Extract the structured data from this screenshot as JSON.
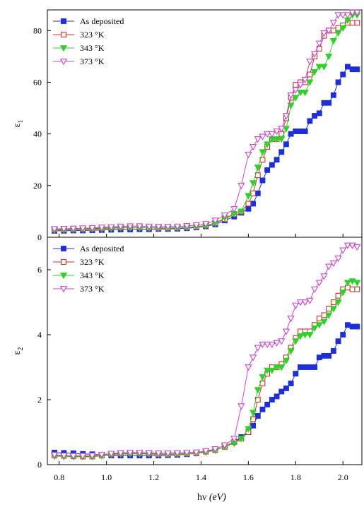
{
  "chart_data": [
    {
      "type": "line",
      "ylabel": "ε",
      "ylabel_sub": "1",
      "xlim": [
        0.75,
        2.08
      ],
      "ylim": [
        0,
        88
      ],
      "xticks": [
        "0.8",
        "1.0",
        "1.2",
        "1.4",
        "1.6",
        "1.8",
        "2.0"
      ],
      "yticks": [
        "0",
        "20",
        "40",
        "60",
        "80"
      ],
      "legend_position": "top-left",
      "series": [
        {
          "name": "As deposited",
          "color": "#1f2fd6",
          "marker": "square-filled",
          "x": [
            0.78,
            0.82,
            0.86,
            0.9,
            0.94,
            0.98,
            1.02,
            1.06,
            1.1,
            1.14,
            1.18,
            1.22,
            1.26,
            1.3,
            1.34,
            1.38,
            1.42,
            1.46,
            1.5,
            1.54,
            1.57,
            1.6,
            1.62,
            1.64,
            1.66,
            1.68,
            1.7,
            1.72,
            1.74,
            1.76,
            1.78,
            1.8,
            1.82,
            1.84,
            1.86,
            1.88,
            1.9,
            1.92,
            1.94,
            1.96,
            1.98,
            2.0,
            2.02,
            2.04,
            2.06
          ],
          "y": [
            2.5,
            2.5,
            2.6,
            2.6,
            2.7,
            2.8,
            2.9,
            3.0,
            3.0,
            3.1,
            3.1,
            3.2,
            3.2,
            3.3,
            3.5,
            3.8,
            4.2,
            5.0,
            6.5,
            8.0,
            9.5,
            11,
            13,
            17,
            22,
            26,
            28,
            30,
            33,
            36,
            40,
            41,
            41,
            41,
            45,
            47,
            48,
            52,
            52,
            55,
            60,
            63,
            66,
            65,
            65
          ]
        },
        {
          "name": "323 °K",
          "color": "#c8322d",
          "marker": "square-open",
          "x": [
            0.78,
            0.82,
            0.86,
            0.9,
            0.94,
            0.98,
            1.02,
            1.06,
            1.1,
            1.14,
            1.18,
            1.22,
            1.26,
            1.3,
            1.34,
            1.38,
            1.42,
            1.46,
            1.5,
            1.54,
            1.57,
            1.6,
            1.62,
            1.64,
            1.66,
            1.68,
            1.7,
            1.72,
            1.74,
            1.76,
            1.78,
            1.8,
            1.82,
            1.84,
            1.86,
            1.88,
            1.9,
            1.92,
            1.94,
            1.96,
            1.98,
            2.0,
            2.02,
            2.04,
            2.06
          ],
          "y": [
            3.0,
            3.0,
            3.1,
            3.2,
            3.3,
            3.5,
            3.7,
            3.8,
            3.8,
            3.8,
            3.7,
            3.6,
            3.6,
            3.7,
            3.9,
            4.1,
            4.6,
            5.5,
            7.0,
            9.0,
            10,
            13,
            17,
            24,
            30,
            35,
            38,
            38,
            40,
            46,
            54,
            59,
            60,
            60,
            63,
            70,
            73,
            78,
            80,
            80,
            81,
            82,
            83,
            83,
            83
          ]
        },
        {
          "name": "343 °K",
          "color": "#2fd12b",
          "marker": "triangle-down-filled",
          "x": [
            0.78,
            0.82,
            0.86,
            0.9,
            0.94,
            0.98,
            1.02,
            1.06,
            1.1,
            1.14,
            1.18,
            1.22,
            1.26,
            1.3,
            1.34,
            1.38,
            1.42,
            1.46,
            1.5,
            1.54,
            1.57,
            1.6,
            1.62,
            1.64,
            1.66,
            1.68,
            1.7,
            1.72,
            1.74,
            1.76,
            1.78,
            1.8,
            1.82,
            1.84,
            1.86,
            1.88,
            1.9,
            1.92,
            1.94,
            1.96,
            1.98,
            2.0,
            2.02,
            2.04,
            2.06
          ],
          "y": [
            2.8,
            2.8,
            2.9,
            3.0,
            3.1,
            3.2,
            3.4,
            3.6,
            3.6,
            3.7,
            3.6,
            3.5,
            3.5,
            3.6,
            3.8,
            4.0,
            4.4,
            5.5,
            7.5,
            9.0,
            10,
            16,
            21,
            27,
            33,
            36,
            38,
            38,
            38,
            42,
            51,
            54,
            56,
            56,
            60,
            64,
            66,
            66,
            70,
            76,
            79,
            81,
            84,
            86,
            86
          ]
        },
        {
          "name": "373 °K",
          "color": "#c848c9",
          "marker": "triangle-down-open",
          "x": [
            0.78,
            0.82,
            0.86,
            0.9,
            0.94,
            0.98,
            1.02,
            1.06,
            1.1,
            1.14,
            1.18,
            1.22,
            1.26,
            1.3,
            1.34,
            1.38,
            1.42,
            1.46,
            1.5,
            1.54,
            1.57,
            1.6,
            1.62,
            1.64,
            1.66,
            1.68,
            1.7,
            1.72,
            1.74,
            1.76,
            1.78,
            1.8,
            1.82,
            1.84,
            1.86,
            1.88,
            1.9,
            1.92,
            1.94,
            1.96,
            1.98,
            2.0,
            2.02,
            2.04,
            2.06
          ],
          "y": [
            3.2,
            3.3,
            3.4,
            3.5,
            3.6,
            3.8,
            4.0,
            4.2,
            4.3,
            4.3,
            4.2,
            4.1,
            4.1,
            4.2,
            4.4,
            4.7,
            5.2,
            6.5,
            8.5,
            11,
            20,
            32,
            35,
            38,
            39,
            40,
            40,
            41,
            42,
            47,
            55,
            57,
            59,
            61,
            68,
            71,
            75,
            79,
            80,
            83,
            86,
            86,
            86,
            87,
            87
          ]
        }
      ]
    },
    {
      "type": "line",
      "ylabel": "ε",
      "ylabel_sub": "2",
      "xlabel": "hν",
      "xlabel_unit": "(eV)",
      "xlim": [
        0.75,
        2.08
      ],
      "ylim": [
        0,
        7
      ],
      "xticks": [
        "0.8",
        "1.0",
        "1.2",
        "1.4",
        "1.6",
        "1.8",
        "2.0"
      ],
      "yticks": [
        "0",
        "2",
        "4",
        "6"
      ],
      "legend_position": "top-left",
      "series": [
        {
          "name": "As deposited",
          "color": "#1f2fd6",
          "marker": "square-filled",
          "x": [
            0.78,
            0.82,
            0.86,
            0.9,
            0.94,
            0.98,
            1.02,
            1.06,
            1.1,
            1.14,
            1.18,
            1.22,
            1.26,
            1.3,
            1.34,
            1.38,
            1.42,
            1.46,
            1.5,
            1.54,
            1.57,
            1.6,
            1.62,
            1.64,
            1.66,
            1.68,
            1.7,
            1.72,
            1.74,
            1.76,
            1.78,
            1.8,
            1.82,
            1.84,
            1.86,
            1.88,
            1.9,
            1.92,
            1.94,
            1.96,
            1.98,
            2.0,
            2.02,
            2.04,
            2.06
          ],
          "y": [
            0.37,
            0.36,
            0.35,
            0.33,
            0.32,
            0.3,
            0.28,
            0.28,
            0.28,
            0.28,
            0.28,
            0.28,
            0.29,
            0.3,
            0.32,
            0.35,
            0.4,
            0.45,
            0.55,
            0.7,
            0.85,
            1.0,
            1.2,
            1.5,
            1.7,
            1.85,
            2.0,
            2.1,
            2.25,
            2.35,
            2.5,
            2.8,
            3.0,
            3.0,
            3.0,
            3.0,
            3.3,
            3.35,
            3.35,
            3.5,
            3.8,
            4.0,
            4.3,
            4.25,
            4.25
          ]
        },
        {
          "name": "323 °K",
          "color": "#c8322d",
          "marker": "square-open",
          "x": [
            0.78,
            0.82,
            0.86,
            0.9,
            0.94,
            0.98,
            1.02,
            1.06,
            1.1,
            1.14,
            1.18,
            1.22,
            1.26,
            1.3,
            1.34,
            1.38,
            1.42,
            1.46,
            1.5,
            1.54,
            1.57,
            1.6,
            1.62,
            1.64,
            1.66,
            1.68,
            1.7,
            1.72,
            1.74,
            1.76,
            1.78,
            1.8,
            1.82,
            1.84,
            1.86,
            1.88,
            1.9,
            1.92,
            1.94,
            1.96,
            1.98,
            2.0,
            2.02,
            2.04,
            2.06
          ],
          "y": [
            0.28,
            0.27,
            0.26,
            0.25,
            0.25,
            0.28,
            0.32,
            0.34,
            0.35,
            0.35,
            0.34,
            0.32,
            0.32,
            0.33,
            0.34,
            0.36,
            0.4,
            0.45,
            0.55,
            0.7,
            0.8,
            1.0,
            1.4,
            2.0,
            2.5,
            2.8,
            3.0,
            3.0,
            3.1,
            3.3,
            3.6,
            3.9,
            4.1,
            4.1,
            4.1,
            4.3,
            4.5,
            4.6,
            4.8,
            5.0,
            5.2,
            5.4,
            5.45,
            5.4,
            5.4
          ]
        },
        {
          "name": "343 °K",
          "color": "#2fd12b",
          "marker": "triangle-down-filled",
          "x": [
            0.78,
            0.82,
            0.86,
            0.9,
            0.94,
            0.98,
            1.02,
            1.06,
            1.1,
            1.14,
            1.18,
            1.22,
            1.26,
            1.3,
            1.34,
            1.38,
            1.42,
            1.46,
            1.5,
            1.54,
            1.57,
            1.6,
            1.62,
            1.64,
            1.66,
            1.68,
            1.7,
            1.72,
            1.74,
            1.76,
            1.78,
            1.8,
            1.82,
            1.84,
            1.86,
            1.88,
            1.9,
            1.92,
            1.94,
            1.96,
            1.98,
            2.0,
            2.02,
            2.04,
            2.06
          ],
          "y": [
            0.26,
            0.25,
            0.24,
            0.24,
            0.24,
            0.27,
            0.3,
            0.32,
            0.33,
            0.33,
            0.32,
            0.31,
            0.31,
            0.32,
            0.33,
            0.35,
            0.38,
            0.44,
            0.55,
            0.65,
            0.8,
            1.1,
            1.6,
            2.3,
            2.7,
            2.9,
            2.9,
            3.0,
            3.0,
            3.2,
            3.5,
            3.8,
            3.95,
            4.0,
            4.0,
            4.2,
            4.3,
            4.4,
            4.6,
            4.8,
            5.0,
            5.3,
            5.6,
            5.65,
            5.6
          ]
        },
        {
          "name": "373 °K",
          "color": "#c848c9",
          "marker": "triangle-down-open",
          "x": [
            0.78,
            0.82,
            0.86,
            0.9,
            0.94,
            0.98,
            1.02,
            1.06,
            1.1,
            1.14,
            1.18,
            1.22,
            1.26,
            1.3,
            1.34,
            1.38,
            1.42,
            1.46,
            1.5,
            1.54,
            1.57,
            1.6,
            1.62,
            1.64,
            1.66,
            1.68,
            1.7,
            1.72,
            1.74,
            1.76,
            1.78,
            1.8,
            1.82,
            1.84,
            1.86,
            1.88,
            1.9,
            1.92,
            1.94,
            1.96,
            1.98,
            2.0,
            2.02,
            2.04,
            2.06
          ],
          "y": [
            0.3,
            0.28,
            0.27,
            0.27,
            0.28,
            0.31,
            0.34,
            0.36,
            0.37,
            0.37,
            0.36,
            0.35,
            0.35,
            0.36,
            0.37,
            0.38,
            0.42,
            0.48,
            0.6,
            0.8,
            1.8,
            3.0,
            3.3,
            3.6,
            3.7,
            3.7,
            3.7,
            3.75,
            3.8,
            4.1,
            4.5,
            4.9,
            5.0,
            5.0,
            5.05,
            5.4,
            5.6,
            5.8,
            6.1,
            6.2,
            6.35,
            6.6,
            6.75,
            6.75,
            6.7
          ]
        }
      ]
    }
  ]
}
